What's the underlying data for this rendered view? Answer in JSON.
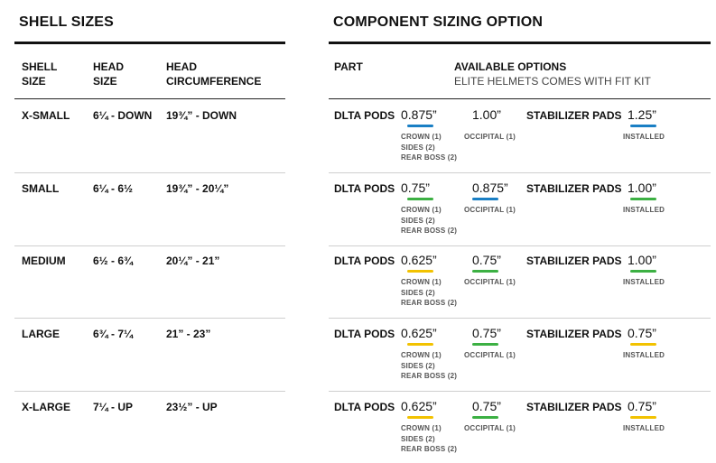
{
  "shell_sizes": {
    "title": "SHELL SIZES",
    "headers": {
      "shell_size": [
        "SHELL",
        "SIZE"
      ],
      "head_size": [
        "HEAD",
        "SIZE"
      ],
      "head_circumference": [
        "HEAD",
        "CIRCUMFERENCE"
      ]
    },
    "rows": [
      {
        "shell": "X-SMALL",
        "head": "6¼ - DOWN",
        "circ": "19¾” - DOWN"
      },
      {
        "shell": "SMALL",
        "head": "6¼ - 6½",
        "circ": "19¾” - 20¼”"
      },
      {
        "shell": "MEDIUM",
        "head": "6½ - 6¾",
        "circ": "20¼” -  21”"
      },
      {
        "shell": "LARGE",
        "head": "6¾ - 7¼",
        "circ": "21” - 23”"
      },
      {
        "shell": "X-LARGE",
        "head": "7¼ - UP",
        "circ": "23½” - UP"
      }
    ]
  },
  "component_sizing": {
    "title": "COMPONENT SIZING OPTION",
    "headers": {
      "part": "PART",
      "options": "AVAILABLE OPTIONS",
      "options_note": "ELITE HELMETS COMES WITH FIT KIT"
    },
    "colors": {
      "blue": "#1a7fc4",
      "green": "#3cb043",
      "yellow": "#f2c200"
    },
    "rows": [
      {
        "part": "DLTA PODS",
        "crown": {
          "value": "0.875”",
          "color": "blue",
          "lines": [
            "CROWN (1)",
            "SIDES (2)",
            "REAR BOSS (2)"
          ]
        },
        "occipital": {
          "value": "1.00”",
          "color": "",
          "label": "OCCIPITAL (1)"
        },
        "stab_label": "STABILIZER PADS",
        "stab": {
          "value": "1.25”",
          "color": "blue",
          "label": "INSTALLED"
        }
      },
      {
        "part": "DLTA PODS",
        "crown": {
          "value": "0.75”",
          "color": "green",
          "lines": [
            "CROWN (1)",
            "SIDES (2)",
            "REAR BOSS (2)"
          ]
        },
        "occipital": {
          "value": "0.875”",
          "color": "blue",
          "label": "OCCIPITAL (1)"
        },
        "stab_label": "STABILIZER PADS",
        "stab": {
          "value": "1.00”",
          "color": "green",
          "label": "INSTALLED"
        }
      },
      {
        "part": "DLTA PODS",
        "crown": {
          "value": "0.625”",
          "color": "yellow",
          "lines": [
            "CROWN (1)",
            "SIDES (2)",
            "REAR BOSS (2)"
          ]
        },
        "occipital": {
          "value": "0.75”",
          "color": "green",
          "label": "OCCIPITAL (1)"
        },
        "stab_label": "STABILIZER PADS",
        "stab": {
          "value": "1.00”",
          "color": "green",
          "label": "INSTALLED"
        }
      },
      {
        "part": "DLTA PODS",
        "crown": {
          "value": "0.625”",
          "color": "yellow",
          "lines": [
            "CROWN (1)",
            "SIDES (2)",
            "REAR BOSS (2)"
          ]
        },
        "occipital": {
          "value": "0.75”",
          "color": "green",
          "label": "OCCIPITAL (1)"
        },
        "stab_label": "STABILIZER PADS",
        "stab": {
          "value": "0.75”",
          "color": "yellow",
          "label": "INSTALLED"
        }
      },
      {
        "part": "DLTA PODS",
        "crown": {
          "value": "0.625”",
          "color": "yellow",
          "lines": [
            "CROWN (1)",
            "SIDES (2)",
            "REAR BOSS (2)"
          ]
        },
        "occipital": {
          "value": "0.75”",
          "color": "green",
          "label": "OCCIPITAL (1)"
        },
        "stab_label": "STABILIZER PADS",
        "stab": {
          "value": "0.75”",
          "color": "yellow",
          "label": "INSTALLED"
        }
      }
    ]
  }
}
